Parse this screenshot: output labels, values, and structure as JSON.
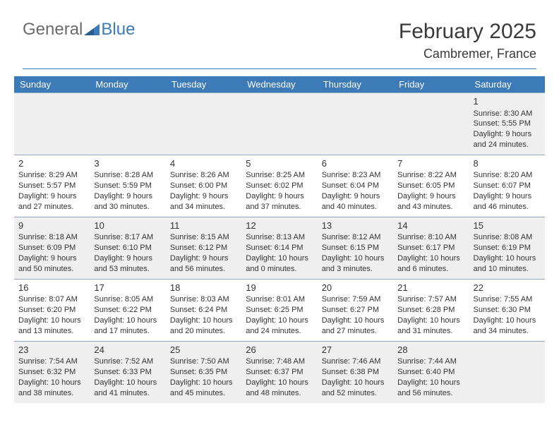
{
  "logo": {
    "textGeneral": "General",
    "textBlue": "Blue"
  },
  "title": {
    "month": "February 2025",
    "location": "Cambremer, France"
  },
  "colors": {
    "headerBar": "#3d7ab8",
    "headerText": "#ffffff",
    "ruleColor": "#3d7ab8",
    "oddRowBg": "#efefef",
    "evenRowBg": "#ffffff",
    "textColor": "#333333",
    "logoGray": "#6b6b6b",
    "logoBlue": "#3d7ab8"
  },
  "columns": [
    "Sunday",
    "Monday",
    "Tuesday",
    "Wednesday",
    "Thursday",
    "Friday",
    "Saturday"
  ],
  "weeks": [
    [
      null,
      null,
      null,
      null,
      null,
      null,
      {
        "d": "1",
        "sr": "8:30 AM",
        "ss": "5:55 PM",
        "dl1": "9 hours",
        "dl2": "and 24 minutes."
      }
    ],
    [
      {
        "d": "2",
        "sr": "8:29 AM",
        "ss": "5:57 PM",
        "dl1": "9 hours",
        "dl2": "and 27 minutes."
      },
      {
        "d": "3",
        "sr": "8:28 AM",
        "ss": "5:59 PM",
        "dl1": "9 hours",
        "dl2": "and 30 minutes."
      },
      {
        "d": "4",
        "sr": "8:26 AM",
        "ss": "6:00 PM",
        "dl1": "9 hours",
        "dl2": "and 34 minutes."
      },
      {
        "d": "5",
        "sr": "8:25 AM",
        "ss": "6:02 PM",
        "dl1": "9 hours",
        "dl2": "and 37 minutes."
      },
      {
        "d": "6",
        "sr": "8:23 AM",
        "ss": "6:04 PM",
        "dl1": "9 hours",
        "dl2": "and 40 minutes."
      },
      {
        "d": "7",
        "sr": "8:22 AM",
        "ss": "6:05 PM",
        "dl1": "9 hours",
        "dl2": "and 43 minutes."
      },
      {
        "d": "8",
        "sr": "8:20 AM",
        "ss": "6:07 PM",
        "dl1": "9 hours",
        "dl2": "and 46 minutes."
      }
    ],
    [
      {
        "d": "9",
        "sr": "8:18 AM",
        "ss": "6:09 PM",
        "dl1": "9 hours",
        "dl2": "and 50 minutes."
      },
      {
        "d": "10",
        "sr": "8:17 AM",
        "ss": "6:10 PM",
        "dl1": "9 hours",
        "dl2": "and 53 minutes."
      },
      {
        "d": "11",
        "sr": "8:15 AM",
        "ss": "6:12 PM",
        "dl1": "9 hours",
        "dl2": "and 56 minutes."
      },
      {
        "d": "12",
        "sr": "8:13 AM",
        "ss": "6:14 PM",
        "dl1": "10 hours",
        "dl2": "and 0 minutes."
      },
      {
        "d": "13",
        "sr": "8:12 AM",
        "ss": "6:15 PM",
        "dl1": "10 hours",
        "dl2": "and 3 minutes."
      },
      {
        "d": "14",
        "sr": "8:10 AM",
        "ss": "6:17 PM",
        "dl1": "10 hours",
        "dl2": "and 6 minutes."
      },
      {
        "d": "15",
        "sr": "8:08 AM",
        "ss": "6:19 PM",
        "dl1": "10 hours",
        "dl2": "and 10 minutes."
      }
    ],
    [
      {
        "d": "16",
        "sr": "8:07 AM",
        "ss": "6:20 PM",
        "dl1": "10 hours",
        "dl2": "and 13 minutes."
      },
      {
        "d": "17",
        "sr": "8:05 AM",
        "ss": "6:22 PM",
        "dl1": "10 hours",
        "dl2": "and 17 minutes."
      },
      {
        "d": "18",
        "sr": "8:03 AM",
        "ss": "6:24 PM",
        "dl1": "10 hours",
        "dl2": "and 20 minutes."
      },
      {
        "d": "19",
        "sr": "8:01 AM",
        "ss": "6:25 PM",
        "dl1": "10 hours",
        "dl2": "and 24 minutes."
      },
      {
        "d": "20",
        "sr": "7:59 AM",
        "ss": "6:27 PM",
        "dl1": "10 hours",
        "dl2": "and 27 minutes."
      },
      {
        "d": "21",
        "sr": "7:57 AM",
        "ss": "6:28 PM",
        "dl1": "10 hours",
        "dl2": "and 31 minutes."
      },
      {
        "d": "22",
        "sr": "7:55 AM",
        "ss": "6:30 PM",
        "dl1": "10 hours",
        "dl2": "and 34 minutes."
      }
    ],
    [
      {
        "d": "23",
        "sr": "7:54 AM",
        "ss": "6:32 PM",
        "dl1": "10 hours",
        "dl2": "and 38 minutes."
      },
      {
        "d": "24",
        "sr": "7:52 AM",
        "ss": "6:33 PM",
        "dl1": "10 hours",
        "dl2": "and 41 minutes."
      },
      {
        "d": "25",
        "sr": "7:50 AM",
        "ss": "6:35 PM",
        "dl1": "10 hours",
        "dl2": "and 45 minutes."
      },
      {
        "d": "26",
        "sr": "7:48 AM",
        "ss": "6:37 PM",
        "dl1": "10 hours",
        "dl2": "and 48 minutes."
      },
      {
        "d": "27",
        "sr": "7:46 AM",
        "ss": "6:38 PM",
        "dl1": "10 hours",
        "dl2": "and 52 minutes."
      },
      {
        "d": "28",
        "sr": "7:44 AM",
        "ss": "6:40 PM",
        "dl1": "10 hours",
        "dl2": "and 56 minutes."
      },
      null
    ]
  ],
  "labels": {
    "sunrise": "Sunrise: ",
    "sunset": "Sunset: ",
    "daylight": "Daylight: "
  }
}
